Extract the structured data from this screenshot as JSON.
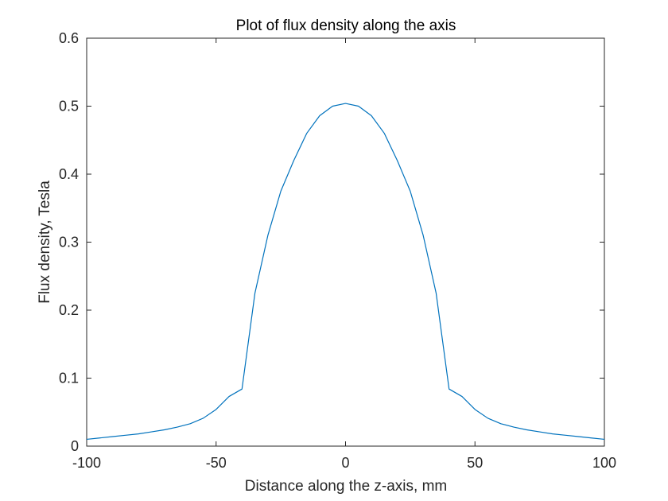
{
  "chart_data": {
    "type": "line",
    "title": "Plot of flux density along the axis",
    "xlabel": "Distance along the z-axis, mm",
    "ylabel": "Flux density, Tesla",
    "xlim": [
      -100,
      100
    ],
    "ylim": [
      0,
      0.6
    ],
    "xticks": [
      -100,
      -50,
      0,
      50,
      100
    ],
    "xtick_labels": [
      "-100",
      "-50",
      "0",
      "50",
      "100"
    ],
    "yticks": [
      0,
      0.1,
      0.2,
      0.3,
      0.4,
      0.5,
      0.6
    ],
    "ytick_labels": [
      "0",
      "0.1",
      "0.2",
      "0.3",
      "0.4",
      "0.5",
      "0.6"
    ],
    "grid": false,
    "legend": "none",
    "line_color": "#0072BD",
    "series": [
      {
        "x": [
          -100,
          -95,
          -90,
          -85,
          -80,
          -75,
          -70,
          -65,
          -60,
          -55,
          -50,
          -45,
          -40,
          -35,
          -30,
          -25,
          -20,
          -15,
          -10,
          -5,
          0,
          5,
          10,
          15,
          20,
          25,
          30,
          35,
          40,
          45,
          50,
          55,
          60,
          65,
          70,
          75,
          80,
          85,
          90,
          95,
          100
        ],
        "y": [
          0.01,
          0.012,
          0.014,
          0.016,
          0.018,
          0.021,
          0.024,
          0.028,
          0.033,
          0.041,
          0.054,
          0.073,
          0.084,
          0.225,
          0.31,
          0.375,
          0.42,
          0.46,
          0.486,
          0.5,
          0.504,
          0.5,
          0.486,
          0.46,
          0.42,
          0.375,
          0.31,
          0.225,
          0.084,
          0.073,
          0.054,
          0.041,
          0.033,
          0.028,
          0.024,
          0.021,
          0.018,
          0.016,
          0.014,
          0.012,
          0.01
        ]
      }
    ]
  }
}
